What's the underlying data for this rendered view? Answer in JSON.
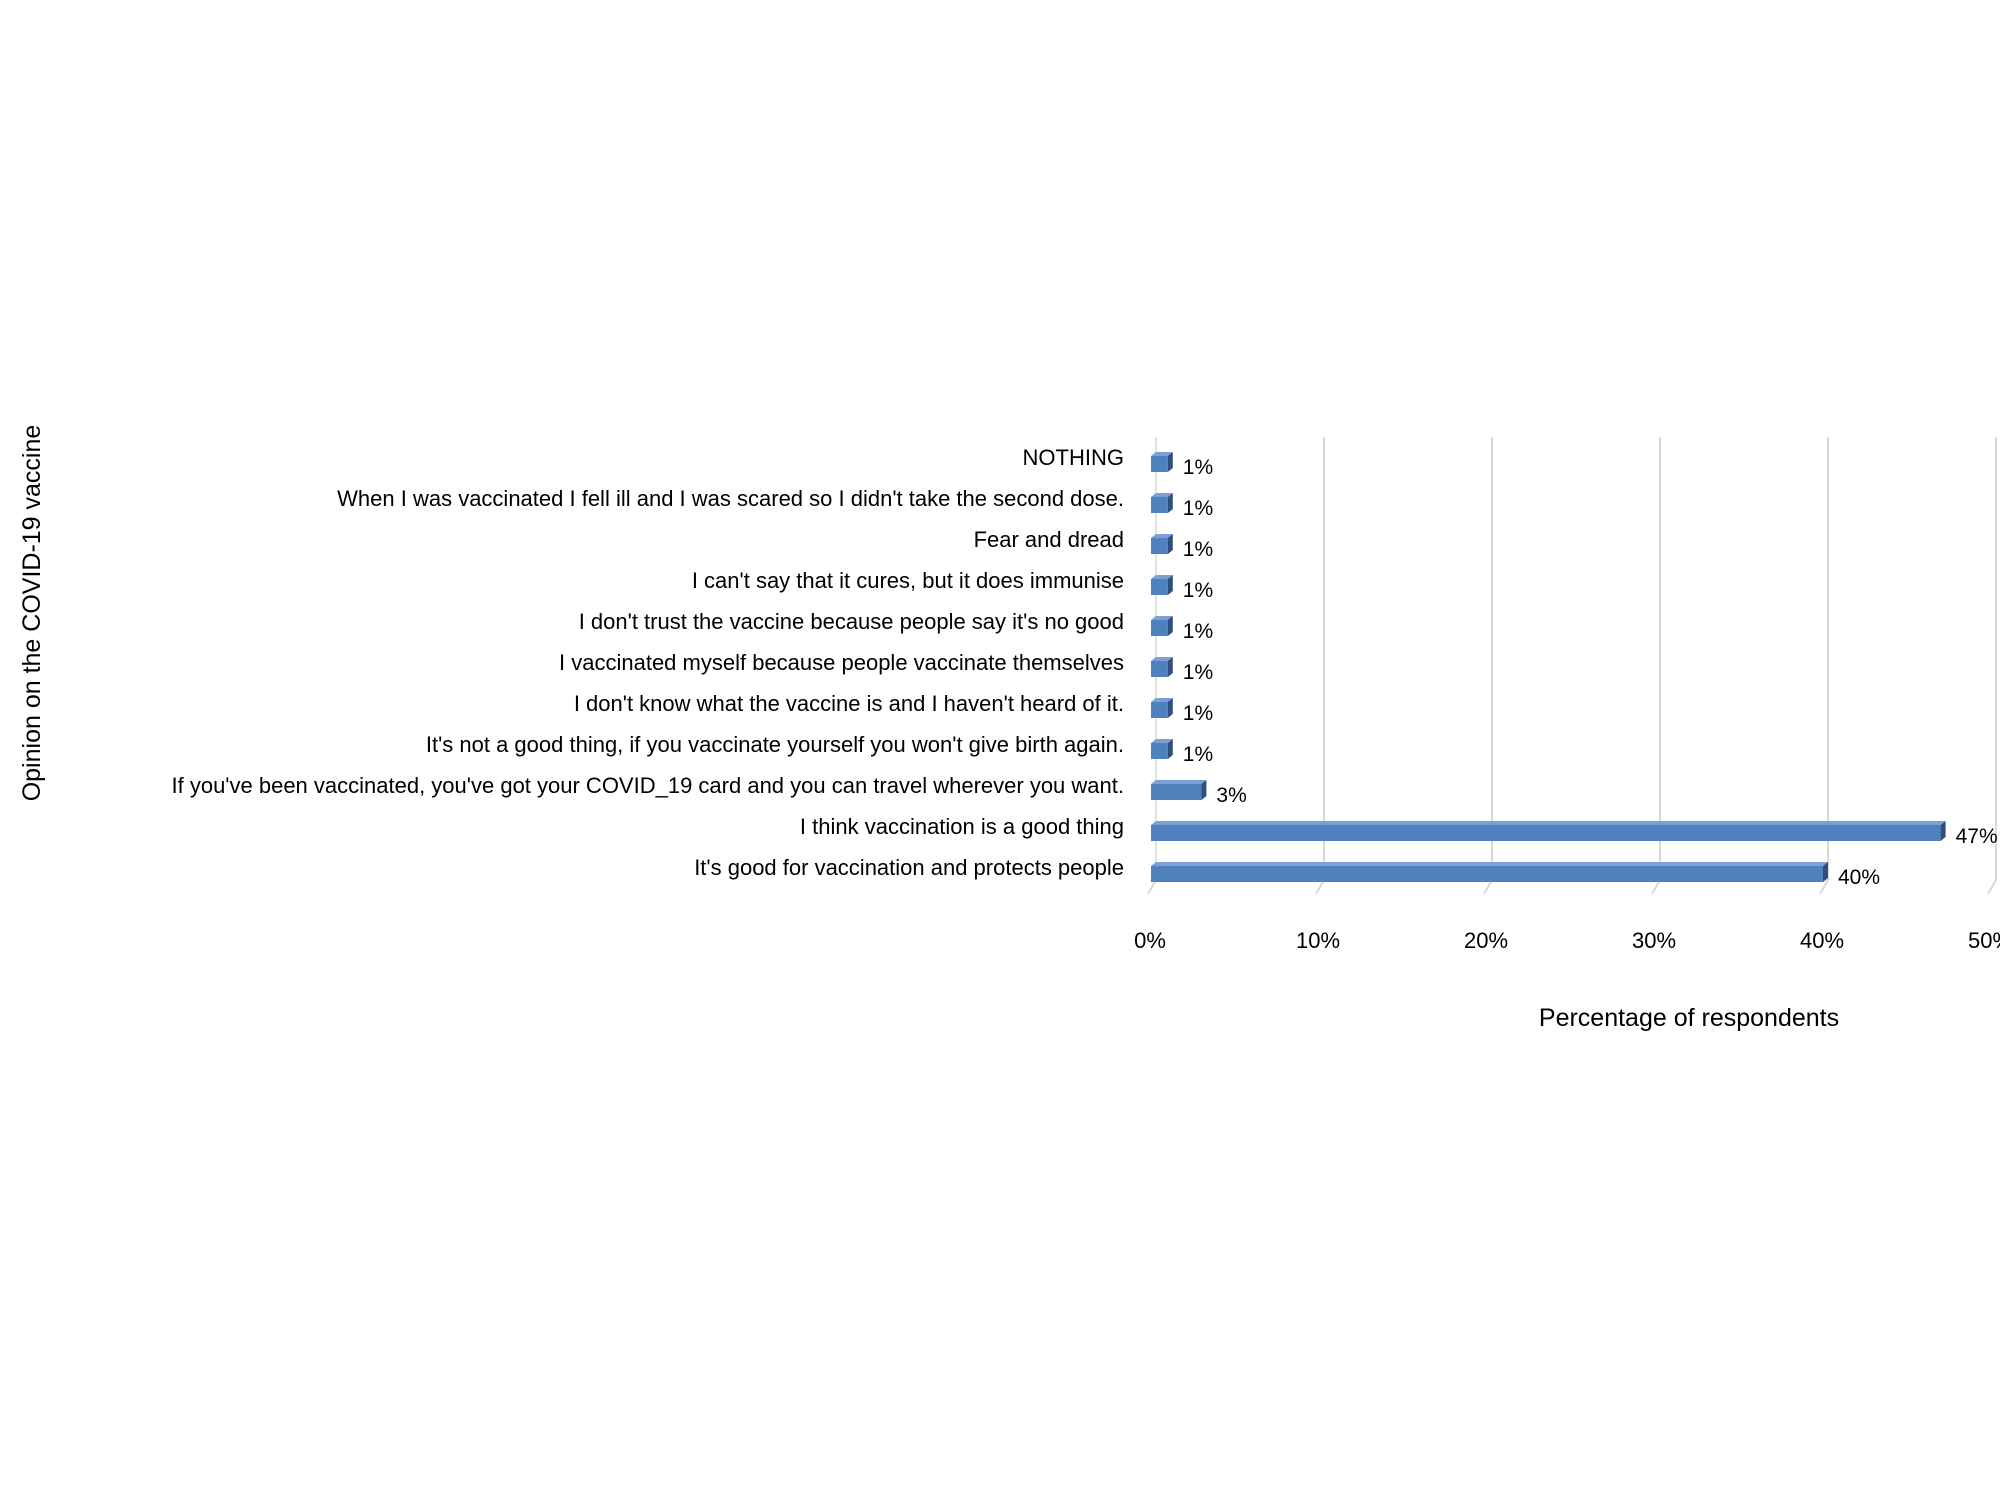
{
  "chart_data": {
    "type": "bar",
    "orientation": "horizontal",
    "style": "3d",
    "title": "",
    "xlabel": "Percentage of respondents",
    "ylabel": "Opinion on the COVID-19 vaccine",
    "xlim": [
      0,
      50
    ],
    "x_ticks": [
      "0%",
      "10%",
      "20%",
      "30%",
      "40%",
      "50%"
    ],
    "grid": true,
    "legend": "none",
    "bar_color": "#4f81bd",
    "bar_top_color": "#7aa1d6",
    "bar_side_color": "#2f4f7f",
    "categories": [
      "NOTHING",
      "When I was vaccinated I fell ill and I was scared so I didn't take the second dose.",
      "Fear and dread",
      "I can't say that it cures, but it does immunise",
      "I don't trust the vaccine because people say it's no good",
      "I vaccinated myself because people vaccinate themselves",
      "I don't know what the vaccine is and I haven't heard of it.",
      "It's not a good thing, if you vaccinate yourself you won't give birth again.",
      "If you've been vaccinated, you've got your COVID_19 card and you can travel wherever you want.",
      "I think vaccination is a good thing",
      "It's good for vaccination and protects people"
    ],
    "values": [
      1,
      1,
      1,
      1,
      1,
      1,
      1,
      1,
      3,
      47,
      40
    ],
    "value_labels": [
      "1%",
      "1%",
      "1%",
      "1%",
      "1%",
      "1%",
      "1%",
      "1%",
      "3%",
      "47%",
      "40%"
    ]
  }
}
